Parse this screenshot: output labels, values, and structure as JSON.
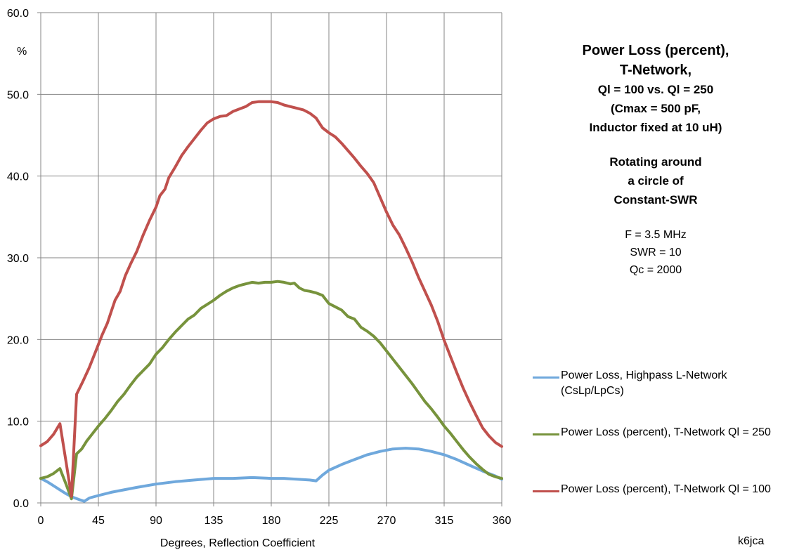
{
  "title_block": {
    "title_line1": "Power Loss (percent),",
    "title_line2": "T-Network,",
    "sub_line1": "Ql = 100 vs. Ql = 250",
    "sub_line2": "(Cmax = 500 pF,",
    "sub_line3": "Inductor fixed at 10 uH)",
    "rot_line1": "Rotating around",
    "rot_line2": "a circle of",
    "rot_line3": "Constant-SWR",
    "param1": "F = 3.5 MHz",
    "param2": "SWR = 10",
    "param3": "Qc = 2000"
  },
  "credit": "k6jca",
  "chart_data": {
    "type": "line",
    "title": "Power Loss (percent), T-Network, Ql = 100 vs. Ql = 250 (Cmax = 500 pF, Inductor fixed at 10 uH)",
    "xlabel": "Degrees, Reflection Coefficient",
    "ylabel": "%",
    "xlim": [
      0,
      360
    ],
    "ylim": [
      0,
      60
    ],
    "x_ticks": [
      "0",
      "45",
      "90",
      "135",
      "180",
      "225",
      "270",
      "315",
      "360"
    ],
    "y_ticks": [
      "0.0",
      "10.0",
      "20.0",
      "30.0",
      "40.0",
      "50.0",
      "60.0"
    ],
    "grid": true,
    "legend_position": "right",
    "series": [
      {
        "name": "Power Loss, Highpass L-Network (CsLp/LpCs)",
        "color": "#6fa8dc",
        "points": [
          [
            0,
            3.0
          ],
          [
            5,
            2.6
          ],
          [
            10,
            2.1
          ],
          [
            15,
            1.6
          ],
          [
            20,
            1.1
          ],
          [
            25,
            0.7
          ],
          [
            30,
            0.4
          ],
          [
            34,
            0.2
          ],
          [
            38,
            0.6
          ],
          [
            45,
            0.9
          ],
          [
            55,
            1.3
          ],
          [
            65,
            1.6
          ],
          [
            75,
            1.9
          ],
          [
            90,
            2.3
          ],
          [
            105,
            2.6
          ],
          [
            120,
            2.8
          ],
          [
            135,
            3.0
          ],
          [
            150,
            3.0
          ],
          [
            165,
            3.1
          ],
          [
            180,
            3.0
          ],
          [
            190,
            3.0
          ],
          [
            200,
            2.9
          ],
          [
            210,
            2.8
          ],
          [
            215,
            2.7
          ],
          [
            220,
            3.4
          ],
          [
            225,
            4.0
          ],
          [
            235,
            4.7
          ],
          [
            245,
            5.3
          ],
          [
            255,
            5.9
          ],
          [
            265,
            6.3
          ],
          [
            275,
            6.6
          ],
          [
            285,
            6.7
          ],
          [
            295,
            6.6
          ],
          [
            305,
            6.3
          ],
          [
            315,
            5.9
          ],
          [
            325,
            5.3
          ],
          [
            335,
            4.6
          ],
          [
            345,
            3.9
          ],
          [
            355,
            3.3
          ],
          [
            360,
            2.9
          ]
        ]
      },
      {
        "name": "Power Loss (percent), T-Network  Ql = 250",
        "color": "#77933c",
        "points": [
          [
            0,
            3.0
          ],
          [
            5,
            3.2
          ],
          [
            10,
            3.6
          ],
          [
            15,
            4.2
          ],
          [
            20,
            2.2
          ],
          [
            24,
            0.5
          ],
          [
            28,
            6.0
          ],
          [
            32,
            6.6
          ],
          [
            36,
            7.6
          ],
          [
            40,
            8.4
          ],
          [
            45,
            9.4
          ],
          [
            50,
            10.3
          ],
          [
            55,
            11.3
          ],
          [
            60,
            12.4
          ],
          [
            65,
            13.3
          ],
          [
            70,
            14.4
          ],
          [
            75,
            15.4
          ],
          [
            80,
            16.2
          ],
          [
            85,
            17.0
          ],
          [
            90,
            18.2
          ],
          [
            95,
            19.0
          ],
          [
            100,
            20.0
          ],
          [
            105,
            20.9
          ],
          [
            110,
            21.7
          ],
          [
            115,
            22.5
          ],
          [
            120,
            23.0
          ],
          [
            125,
            23.8
          ],
          [
            130,
            24.3
          ],
          [
            135,
            24.8
          ],
          [
            140,
            25.4
          ],
          [
            145,
            25.9
          ],
          [
            150,
            26.3
          ],
          [
            155,
            26.6
          ],
          [
            160,
            26.8
          ],
          [
            165,
            27.0
          ],
          [
            170,
            26.9
          ],
          [
            175,
            27.0
          ],
          [
            180,
            27.0
          ],
          [
            185,
            27.1
          ],
          [
            190,
            27.0
          ],
          [
            195,
            26.8
          ],
          [
            198,
            26.9
          ],
          [
            202,
            26.3
          ],
          [
            206,
            26.0
          ],
          [
            210,
            25.9
          ],
          [
            215,
            25.7
          ],
          [
            220,
            25.4
          ],
          [
            225,
            24.4
          ],
          [
            230,
            24.0
          ],
          [
            235,
            23.6
          ],
          [
            240,
            22.8
          ],
          [
            245,
            22.5
          ],
          [
            250,
            21.5
          ],
          [
            255,
            21.0
          ],
          [
            260,
            20.4
          ],
          [
            265,
            19.6
          ],
          [
            270,
            18.6
          ],
          [
            275,
            17.6
          ],
          [
            280,
            16.6
          ],
          [
            285,
            15.6
          ],
          [
            290,
            14.6
          ],
          [
            295,
            13.5
          ],
          [
            300,
            12.4
          ],
          [
            305,
            11.5
          ],
          [
            310,
            10.5
          ],
          [
            315,
            9.4
          ],
          [
            320,
            8.5
          ],
          [
            325,
            7.5
          ],
          [
            330,
            6.5
          ],
          [
            335,
            5.6
          ],
          [
            340,
            4.8
          ],
          [
            345,
            4.1
          ],
          [
            350,
            3.5
          ],
          [
            355,
            3.2
          ],
          [
            360,
            3.0
          ]
        ]
      },
      {
        "name": "Power Loss (percent), T-Network  Ql = 100",
        "color": "#c0504d",
        "points": [
          [
            0,
            7.0
          ],
          [
            5,
            7.5
          ],
          [
            10,
            8.4
          ],
          [
            15,
            9.7
          ],
          [
            20,
            4.8
          ],
          [
            24,
            0.8
          ],
          [
            28,
            13.3
          ],
          [
            33,
            14.9
          ],
          [
            38,
            16.6
          ],
          [
            43,
            18.6
          ],
          [
            48,
            20.6
          ],
          [
            52,
            22.0
          ],
          [
            55,
            23.4
          ],
          [
            58,
            24.8
          ],
          [
            62,
            25.9
          ],
          [
            66,
            27.8
          ],
          [
            70,
            29.2
          ],
          [
            75,
            30.8
          ],
          [
            80,
            32.8
          ],
          [
            85,
            34.6
          ],
          [
            90,
            36.2
          ],
          [
            93,
            37.6
          ],
          [
            97,
            38.4
          ],
          [
            100,
            39.8
          ],
          [
            105,
            41.1
          ],
          [
            110,
            42.5
          ],
          [
            115,
            43.6
          ],
          [
            120,
            44.6
          ],
          [
            125,
            45.6
          ],
          [
            130,
            46.5
          ],
          [
            135,
            47.0
          ],
          [
            140,
            47.3
          ],
          [
            145,
            47.4
          ],
          [
            150,
            47.9
          ],
          [
            155,
            48.2
          ],
          [
            160,
            48.5
          ],
          [
            165,
            49.0
          ],
          [
            170,
            49.1
          ],
          [
            175,
            49.1
          ],
          [
            180,
            49.1
          ],
          [
            185,
            49.0
          ],
          [
            190,
            48.7
          ],
          [
            195,
            48.5
          ],
          [
            200,
            48.3
          ],
          [
            205,
            48.1
          ],
          [
            210,
            47.7
          ],
          [
            215,
            47.1
          ],
          [
            220,
            45.9
          ],
          [
            225,
            45.3
          ],
          [
            230,
            44.8
          ],
          [
            235,
            44.0
          ],
          [
            240,
            43.1
          ],
          [
            245,
            42.2
          ],
          [
            250,
            41.2
          ],
          [
            255,
            40.3
          ],
          [
            260,
            39.2
          ],
          [
            265,
            37.4
          ],
          [
            270,
            35.6
          ],
          [
            275,
            34.0
          ],
          [
            280,
            32.8
          ],
          [
            285,
            31.2
          ],
          [
            290,
            29.5
          ],
          [
            295,
            27.6
          ],
          [
            300,
            25.9
          ],
          [
            305,
            24.2
          ],
          [
            310,
            22.2
          ],
          [
            315,
            19.9
          ],
          [
            320,
            17.9
          ],
          [
            325,
            15.9
          ],
          [
            330,
            14.0
          ],
          [
            335,
            12.3
          ],
          [
            340,
            10.7
          ],
          [
            345,
            9.2
          ],
          [
            350,
            8.2
          ],
          [
            355,
            7.4
          ],
          [
            360,
            6.9
          ]
        ]
      }
    ]
  }
}
